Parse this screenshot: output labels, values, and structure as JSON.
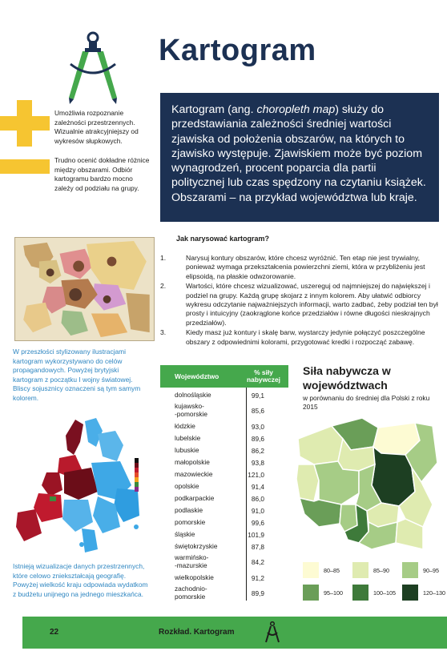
{
  "header": {
    "title": "Kartogram"
  },
  "pros": "Umożliwia rozpoznanie zależności przestrzennych. Wizualnie atrakcyjniejszy od wykresów słupkowych.",
  "cons": "Trudno ocenić dokładne różnice między obszarami. Odbiór kartogramu bardzo mocno zależy od podziału na grupy.",
  "intro": {
    "part1": "Kartogram (ang. ",
    "italic": "choropleth map",
    "part2": ") służy do przedstawiania zależności średniej wartości zjawiska od położenia obszarów, na których to zjawisko występuje. Zjawiskiem może być poziom wynagrodzeń, procent poparcia dla partii politycznej lub czas spędzony na czytaniu książek. Obszarami – na przykład województwa lub kraje."
  },
  "caption1": "W przeszłości stylizowany ilustracjami kartogram wykorzystywano do celów propagandowych. Powyżej brytyjski kartogram z początku I wojny światowej. Bliscy sojusznicy oznaczeni są tym samym kolorem.",
  "caption2": "Istnieją wizualizacje danych przestrzennych, które celowo zniekształcają geografię. Powyżej wielkość kraju odpowiada wydatkom z budżetu unijnego na jednego mieszkańca.",
  "howto": {
    "title": "Jak narysować kartogram?",
    "steps": [
      {
        "num": "1.",
        "text": "Narysuj kontury obszarów, które chcesz wyróżnić. Ten etap nie jest trywialny, ponieważ wymaga przekształcenia powierzchni ziemi, która w przybliżeniu jest elipsoidą, na płaskie odwzorowanie."
      },
      {
        "num": "2.",
        "text": "Wartości, które chcesz wizualizować, uszereguj od najmniejszej do największej i podziel na grupy. Każdą grupę skojarz z innym kolorem. Aby ułatwić odbiorcy wykresu odczytanie najważniejszych informacji, warto zadbać, żeby podział ten był prosty i intuicyjny (zaokrąglone końce przedziałów i równe długości nieskrajnych przedziałów)."
      },
      {
        "num": "3.",
        "text": "Kiedy masz już kontury i skalę barw, wystarczy jedynie połączyć poszczególne obszary z odpowiednimi kolorami, przygotować kredki i rozpocząć zabawę."
      }
    ]
  },
  "table": {
    "col1": "Województwo",
    "col2": "% siły nabywczej",
    "rows": [
      {
        "name": "dolnośląskie",
        "value": "99,1"
      },
      {
        "name": "kujawsko-\n-pomorskie",
        "value": "85,6"
      },
      {
        "name": "łódzkie",
        "value": "93,0"
      },
      {
        "name": "lubelskie",
        "value": "89,6"
      },
      {
        "name": "lubuskie",
        "value": "86,2"
      },
      {
        "name": "małopolskie",
        "value": "93,8"
      },
      {
        "name": "mazowieckie",
        "value": "121,0"
      },
      {
        "name": "opolskie",
        "value": "91,4"
      },
      {
        "name": "podkarpackie",
        "value": "86,0"
      },
      {
        "name": "podlaskie",
        "value": "91,0"
      },
      {
        "name": "pomorskie",
        "value": "99,6"
      },
      {
        "name": "śląskie",
        "value": "101,9"
      },
      {
        "name": "świętokrzyskie",
        "value": "87,8"
      },
      {
        "name": "warmińsko-\n-mazurskie",
        "value": "84,2"
      },
      {
        "name": "wielkopolskie",
        "value": "91,2"
      },
      {
        "name": "zachodnio-\npomorskie",
        "value": "89,9"
      }
    ]
  },
  "map": {
    "title": "Siła nabywcza w województwach",
    "subtitle": "w porównaniu do średniej dla Polski z roku 2015",
    "legend": [
      {
        "label": "80–85",
        "color": "#fdfbd3"
      },
      {
        "label": "85–90",
        "color": "#dfebb0"
      },
      {
        "label": "90–95",
        "color": "#a6cc86"
      },
      {
        "label": "95–100",
        "color": "#6a9e58"
      },
      {
        "label": "100–105",
        "color": "#3e7a3a"
      },
      {
        "label": "120–130",
        "color": "#1d3f22"
      }
    ]
  },
  "footer": {
    "page": "22",
    "text": "Rozkład. Kartogram"
  },
  "colors": {
    "navy": "#1c3153",
    "green": "#45a84c",
    "yellow": "#f6c531",
    "blue": "#2e86c1"
  }
}
